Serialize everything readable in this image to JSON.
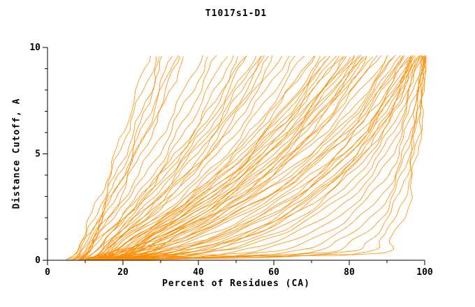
{
  "title": "T1017s1-D1",
  "chart_data": {
    "type": "line",
    "title": "T1017s1-D1",
    "xlabel": "Percent of Residues (CA)",
    "ylabel": "Distance Cutoff, A",
    "xlim": [
      0,
      100
    ],
    "ylim": [
      0,
      10
    ],
    "xticks": [
      0,
      20,
      40,
      60,
      80,
      100
    ],
    "xminor": [
      10,
      30,
      50,
      70,
      90
    ],
    "yticks": [
      0,
      5,
      10
    ],
    "yminor": [
      1,
      2,
      3,
      4,
      6,
      7,
      8,
      9
    ],
    "grid": false,
    "legend": null,
    "line_color": "#FF8C00",
    "axis_color": "#000000",
    "background": "#FFFFFF",
    "y_levels": [
      0.02,
      0.3,
      1.0,
      2.2,
      4.0,
      6.5,
      9.6
    ],
    "series": [
      [
        5,
        7,
        9,
        12,
        16,
        21,
        27
      ],
      [
        6,
        8,
        10,
        13,
        17,
        22,
        29
      ],
      [
        6,
        9,
        11,
        14,
        18,
        24,
        31
      ],
      [
        7,
        9,
        11,
        15,
        20,
        26,
        33
      ],
      [
        7,
        10,
        12,
        16,
        21,
        27,
        34
      ],
      [
        8,
        10,
        13,
        17,
        22,
        29,
        36
      ],
      [
        5,
        8,
        10,
        14,
        19,
        25,
        30
      ],
      [
        8,
        10,
        12,
        15,
        20,
        28,
        35
      ],
      [
        6,
        9,
        12,
        17,
        24,
        32,
        41
      ],
      [
        7,
        10,
        13,
        18,
        26,
        34,
        43
      ],
      [
        8,
        11,
        14,
        20,
        28,
        36,
        45
      ],
      [
        9,
        12,
        15,
        21,
        29,
        38,
        47
      ],
      [
        10,
        13,
        16,
        22,
        30,
        40,
        49
      ],
      [
        8,
        11,
        14,
        21,
        30,
        41,
        51
      ],
      [
        9,
        12,
        16,
        23,
        32,
        43,
        53
      ],
      [
        10,
        13,
        17,
        24,
        33,
        44,
        55
      ],
      [
        11,
        14,
        18,
        25,
        35,
        46,
        57
      ],
      [
        12,
        15,
        19,
        27,
        37,
        48,
        59
      ],
      [
        9,
        12,
        15,
        22,
        31,
        42,
        52
      ],
      [
        11,
        14,
        17,
        25,
        34,
        45,
        56
      ],
      [
        12,
        16,
        20,
        28,
        38,
        49,
        60
      ],
      [
        10,
        14,
        18,
        26,
        36,
        47,
        58
      ],
      [
        10,
        14,
        18,
        27,
        38,
        50,
        62
      ],
      [
        11,
        15,
        19,
        28,
        40,
        52,
        64
      ],
      [
        12,
        16,
        20,
        30,
        42,
        54,
        66
      ],
      [
        13,
        17,
        22,
        32,
        44,
        56,
        68
      ],
      [
        14,
        18,
        23,
        33,
        45,
        58,
        70
      ],
      [
        12,
        16,
        21,
        31,
        43,
        57,
        71
      ],
      [
        13,
        18,
        23,
        34,
        47,
        60,
        73
      ],
      [
        14,
        19,
        24,
        35,
        48,
        62,
        75
      ],
      [
        15,
        20,
        26,
        37,
        50,
        64,
        77
      ],
      [
        16,
        21,
        27,
        38,
        52,
        66,
        79
      ],
      [
        13,
        17,
        22,
        33,
        46,
        61,
        74
      ],
      [
        15,
        20,
        25,
        36,
        49,
        63,
        76
      ],
      [
        16,
        22,
        28,
        40,
        53,
        67,
        80
      ],
      [
        17,
        23,
        29,
        41,
        55,
        69,
        82
      ],
      [
        18,
        24,
        30,
        43,
        57,
        71,
        84
      ],
      [
        14,
        19,
        25,
        37,
        51,
        66,
        81
      ],
      [
        16,
        21,
        27,
        39,
        54,
        68,
        83
      ],
      [
        17,
        23,
        30,
        42,
        56,
        70,
        85
      ],
      [
        12,
        17,
        22,
        34,
        48,
        63,
        78
      ],
      [
        15,
        21,
        26,
        38,
        52,
        67,
        82
      ],
      [
        18,
        25,
        31,
        44,
        58,
        72,
        85
      ],
      [
        13,
        18,
        24,
        36,
        50,
        65,
        80
      ],
      [
        19,
        26,
        32,
        45,
        59,
        73,
        86
      ],
      [
        20,
        27,
        33,
        46,
        60,
        74,
        87
      ],
      [
        11,
        16,
        21,
        32,
        45,
        60,
        75
      ],
      [
        17,
        22,
        28,
        41,
        55,
        70,
        84
      ],
      [
        8,
        15,
        28,
        42,
        58,
        74,
        88
      ],
      [
        9,
        16,
        30,
        44,
        60,
        76,
        90
      ],
      [
        10,
        18,
        32,
        46,
        62,
        78,
        91
      ],
      [
        10,
        20,
        34,
        48,
        64,
        80,
        92
      ],
      [
        11,
        22,
        36,
        50,
        66,
        81,
        93
      ],
      [
        11,
        24,
        38,
        52,
        68,
        82,
        94
      ],
      [
        12,
        25,
        40,
        54,
        70,
        84,
        95
      ],
      [
        12,
        26,
        42,
        56,
        71,
        85,
        96
      ],
      [
        13,
        28,
        44,
        58,
        73,
        86,
        96
      ],
      [
        13,
        30,
        46,
        60,
        74,
        87,
        97
      ],
      [
        14,
        32,
        48,
        62,
        76,
        88,
        97
      ],
      [
        14,
        34,
        50,
        64,
        77,
        89,
        98
      ],
      [
        9,
        36,
        52,
        66,
        79,
        90,
        98
      ],
      [
        10,
        38,
        54,
        68,
        80,
        91,
        99
      ],
      [
        11,
        40,
        56,
        70,
        82,
        92,
        99
      ],
      [
        12,
        21,
        35,
        50,
        66,
        82,
        94
      ],
      [
        13,
        27,
        43,
        57,
        72,
        86,
        97
      ],
      [
        14,
        33,
        49,
        63,
        77,
        89,
        98
      ],
      [
        9,
        19,
        33,
        47,
        63,
        79,
        92
      ],
      [
        10,
        23,
        37,
        51,
        67,
        83,
        95
      ],
      [
        11,
        29,
        45,
        59,
        74,
        87,
        97
      ],
      [
        12,
        35,
        51,
        65,
        78,
        90,
        98
      ],
      [
        10,
        40,
        58,
        72,
        84,
        93,
        99
      ],
      [
        11,
        45,
        62,
        75,
        86,
        94,
        100
      ],
      [
        12,
        50,
        66,
        78,
        88,
        95,
        100
      ],
      [
        13,
        55,
        70,
        81,
        90,
        96,
        100
      ],
      [
        14,
        60,
        74,
        84,
        92,
        97,
        100
      ],
      [
        10,
        65,
        78,
        87,
        93,
        97,
        100
      ],
      [
        11,
        70,
        82,
        89,
        94,
        98,
        100
      ],
      [
        12,
        75,
        85,
        91,
        95,
        98,
        100
      ],
      [
        13,
        80,
        88,
        93,
        96,
        99,
        100
      ],
      [
        14,
        85,
        91,
        95,
        97,
        99,
        100
      ]
    ]
  }
}
